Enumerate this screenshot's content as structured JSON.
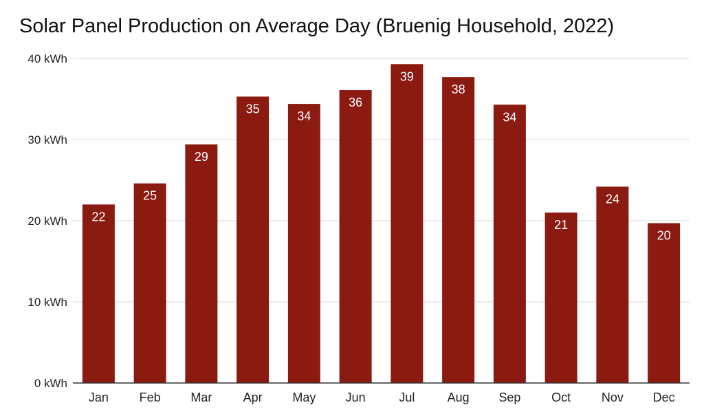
{
  "chart_data": {
    "type": "bar",
    "title": "Solar Panel Production on Average Day (Bruenig Household, 2022)",
    "xlabel": "",
    "ylabel": "",
    "categories": [
      "Jan",
      "Feb",
      "Mar",
      "Apr",
      "May",
      "Jun",
      "Jul",
      "Aug",
      "Sep",
      "Oct",
      "Nov",
      "Dec"
    ],
    "values": [
      22,
      24.6,
      29.4,
      35.3,
      34.4,
      36.1,
      39.3,
      37.7,
      34.3,
      21,
      24.2,
      19.7
    ],
    "data_labels": [
      "22",
      "25",
      "29",
      "35",
      "34",
      "36",
      "39",
      "38",
      "34",
      "21",
      "24",
      "20"
    ],
    "ylim": [
      0,
      40
    ],
    "yticks": [
      0,
      10,
      20,
      30,
      40
    ],
    "ytick_labels": [
      "0 kWh",
      "10 kWh",
      "20 kWh",
      "30 kWh",
      "40 kWh"
    ],
    "grid": true,
    "legend": "none",
    "colors": {
      "bar": "#8b1a11",
      "grid": "#d9d9d9",
      "axis": "#333333"
    }
  }
}
